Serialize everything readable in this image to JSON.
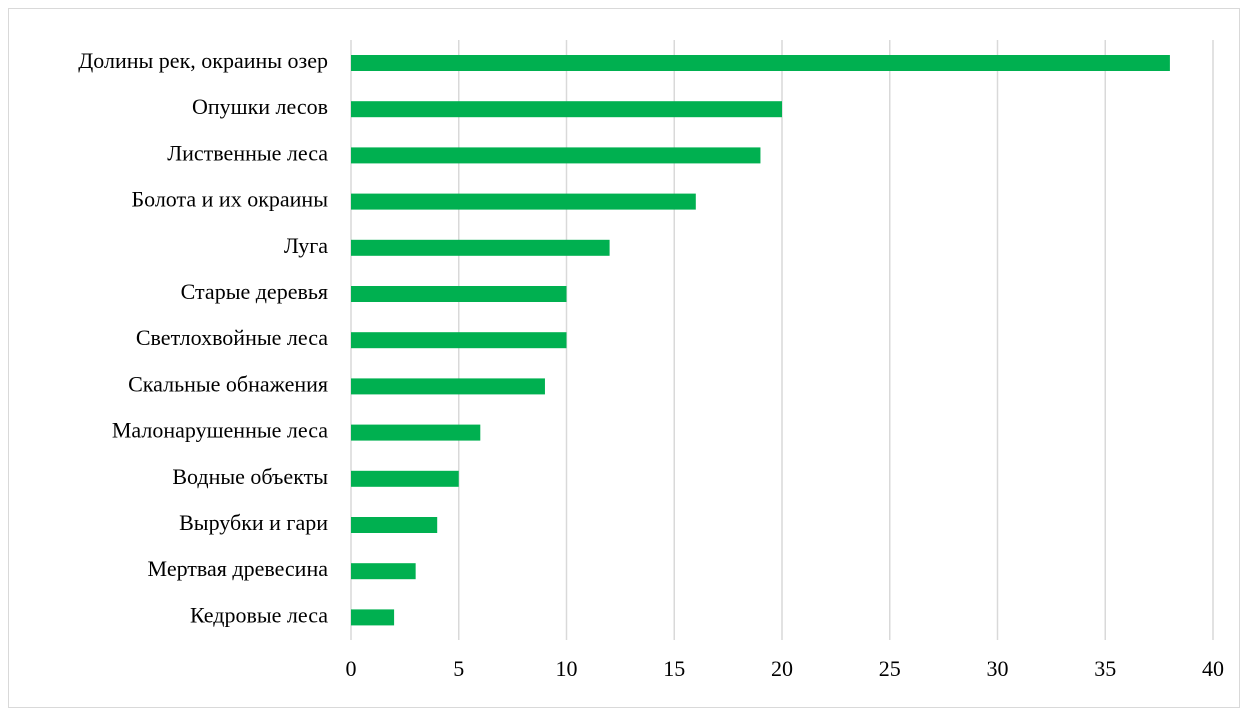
{
  "chart_data": {
    "type": "bar",
    "orientation": "horizontal",
    "categories": [
      "Долины рек, окраины озер",
      "Опушки лесов",
      "Лиственные леса",
      "Болота и их окраины",
      "Луга",
      "Старые деревья",
      "Светлохвойные леса",
      "Скальные обнажения",
      "Малонарушенные леса",
      "Водные объекты",
      "Вырубки и гари",
      "Мертвая древесина",
      "Кедровые леса"
    ],
    "values": [
      38,
      20,
      19,
      16,
      12,
      10,
      10,
      9,
      6,
      5,
      4,
      3,
      2
    ],
    "xlim": [
      0,
      40
    ],
    "xticks": [
      "0",
      "5",
      "10",
      "15",
      "20",
      "25",
      "30",
      "35",
      "40"
    ],
    "title": "",
    "xlabel": "",
    "ylabel": "",
    "grid": "vertical",
    "legend": "none",
    "colors": {
      "bar": "#00b050",
      "grid": "#d9d9d9",
      "frame": "#d9d9d9"
    }
  }
}
